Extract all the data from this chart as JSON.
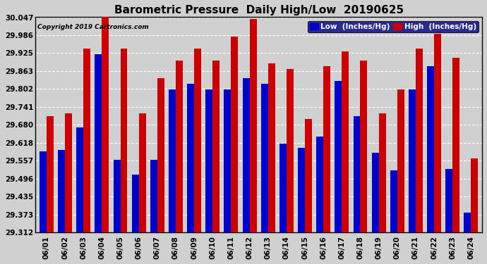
{
  "title": "Barometric Pressure  Daily High/Low  20190625",
  "copyright": "Copyright 2019 Cartronics.com",
  "legend_low": "Low  (Inches/Hg)",
  "legend_high": "High  (Inches/Hg)",
  "dates": [
    "06/01",
    "06/02",
    "06/03",
    "06/04",
    "06/05",
    "06/06",
    "06/07",
    "06/08",
    "06/09",
    "06/10",
    "06/11",
    "06/12",
    "06/13",
    "06/14",
    "06/15",
    "06/16",
    "06/17",
    "06/18",
    "06/19",
    "06/20",
    "06/21",
    "06/22",
    "06/23",
    "06/24"
  ],
  "low": [
    29.59,
    29.595,
    29.67,
    29.92,
    29.56,
    29.51,
    29.56,
    29.8,
    29.82,
    29.8,
    29.8,
    29.84,
    29.82,
    29.615,
    29.6,
    29.64,
    29.83,
    29.71,
    29.585,
    29.525,
    29.8,
    29.88,
    29.53,
    29.38
  ],
  "high": [
    29.71,
    29.72,
    29.94,
    30.06,
    29.94,
    29.72,
    29.84,
    29.9,
    29.94,
    29.9,
    29.98,
    30.04,
    29.89,
    29.87,
    29.7,
    29.88,
    29.93,
    29.9,
    29.72,
    29.8,
    29.94,
    29.99,
    29.91,
    29.565
  ],
  "ylim_min": 29.312,
  "ylim_max": 30.047,
  "yticks": [
    29.312,
    29.373,
    29.435,
    29.496,
    29.557,
    29.618,
    29.68,
    29.741,
    29.802,
    29.863,
    29.925,
    29.986,
    30.047
  ],
  "bg_color": "#d0d0d0",
  "bar_width": 0.38,
  "low_color": "#0000cc",
  "high_color": "#cc0000",
  "grid_color": "white",
  "title_fontsize": 11,
  "tick_fontsize": 7.5,
  "fig_width": 6.9,
  "fig_height": 3.75,
  "fig_dpi": 100
}
